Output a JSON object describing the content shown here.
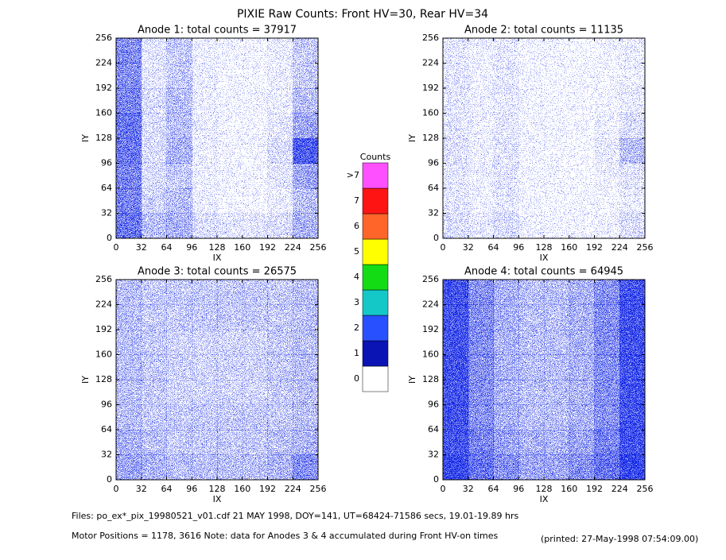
{
  "title": "PIXIE Raw Counts:  Front HV=30, Rear HV=34",
  "colorbar": {
    "title": "Counts",
    "labels": [
      "0",
      "1",
      "2",
      "3",
      "4",
      "5",
      "6",
      "7",
      ">7"
    ],
    "colors": [
      "#ffffff",
      "#0a14b4",
      "#2850ff",
      "#14c8c8",
      "#14dc14",
      "#ffff00",
      "#ff6428",
      "#ff1414",
      "#ff50ff"
    ]
  },
  "footer": {
    "line1": "Files: po_ex*_pix_19980521_v01.cdf    21 MAY 1998, DOY=141, UT=68424-71586 secs, 19.01-19.89 hrs",
    "line2": "Motor Positions = 1178, 3616    Note: data for Anodes 3 & 4 accumulated during Front HV-on times",
    "printed": "(printed: 27-May-1998 07:54:09.00)"
  },
  "chart_data": [
    {
      "type": "heatmap",
      "title": "Anode 1: total counts = 37917",
      "xlabel": "IX",
      "ylabel": "IY",
      "color": "#1428e6",
      "xlim": [
        0,
        256
      ],
      "ylim": [
        0,
        256
      ],
      "xticks": [
        0,
        32,
        64,
        96,
        128,
        160,
        192,
        224,
        256
      ],
      "yticks": [
        0,
        32,
        64,
        96,
        128,
        160,
        192,
        224,
        256
      ],
      "density": [
        [
          0.5,
          0.15,
          0.3,
          0.1,
          0.05,
          0.05,
          0.1,
          0.3
        ],
        [
          0.5,
          0.15,
          0.3,
          0.1,
          0.05,
          0.05,
          0.1,
          0.3
        ],
        [
          0.55,
          0.2,
          0.35,
          0.1,
          0.05,
          0.05,
          0.1,
          0.35
        ],
        [
          0.6,
          0.2,
          0.35,
          0.1,
          0.05,
          0.05,
          0.15,
          0.45
        ],
        [
          0.6,
          0.2,
          0.4,
          0.1,
          0.05,
          0.05,
          0.2,
          0.7
        ],
        [
          0.55,
          0.2,
          0.3,
          0.1,
          0.05,
          0.05,
          0.15,
          0.45
        ],
        [
          0.55,
          0.25,
          0.35,
          0.1,
          0.05,
          0.05,
          0.1,
          0.35
        ],
        [
          0.6,
          0.35,
          0.4,
          0.2,
          0.15,
          0.15,
          0.2,
          0.4
        ]
      ]
    },
    {
      "type": "heatmap",
      "title": "Anode 2: total counts = 11135",
      "xlabel": "IX",
      "ylabel": "IY",
      "color": "#1428e6",
      "xlim": [
        0,
        256
      ],
      "ylim": [
        0,
        256
      ],
      "xticks": [
        0,
        32,
        64,
        96,
        128,
        160,
        192,
        224,
        256
      ],
      "yticks": [
        0,
        32,
        64,
        96,
        128,
        160,
        192,
        224,
        256
      ],
      "density": [
        [
          0.15,
          0.08,
          0.12,
          0.05,
          0.03,
          0.03,
          0.05,
          0.1
        ],
        [
          0.15,
          0.08,
          0.15,
          0.05,
          0.03,
          0.03,
          0.05,
          0.1
        ],
        [
          0.15,
          0.08,
          0.12,
          0.05,
          0.03,
          0.03,
          0.05,
          0.12
        ],
        [
          0.15,
          0.08,
          0.15,
          0.05,
          0.03,
          0.03,
          0.08,
          0.2
        ],
        [
          0.18,
          0.08,
          0.15,
          0.05,
          0.03,
          0.03,
          0.12,
          0.35
        ],
        [
          0.15,
          0.08,
          0.15,
          0.05,
          0.03,
          0.03,
          0.08,
          0.15
        ],
        [
          0.15,
          0.08,
          0.15,
          0.05,
          0.03,
          0.03,
          0.05,
          0.12
        ],
        [
          0.2,
          0.12,
          0.2,
          0.08,
          0.05,
          0.05,
          0.08,
          0.2
        ]
      ]
    },
    {
      "type": "heatmap",
      "title": "Anode 3: total counts = 26575",
      "xlabel": "IX",
      "ylabel": "IY",
      "color": "#1428e6",
      "xlim": [
        0,
        256
      ],
      "ylim": [
        0,
        256
      ],
      "xticks": [
        0,
        32,
        64,
        96,
        128,
        160,
        192,
        224,
        256
      ],
      "yticks": [
        0,
        32,
        64,
        96,
        128,
        160,
        192,
        224,
        256
      ],
      "density": [
        [
          0.35,
          0.3,
          0.3,
          0.3,
          0.3,
          0.3,
          0.3,
          0.35
        ],
        [
          0.35,
          0.3,
          0.3,
          0.3,
          0.3,
          0.3,
          0.3,
          0.35
        ],
        [
          0.35,
          0.3,
          0.25,
          0.25,
          0.25,
          0.25,
          0.3,
          0.35
        ],
        [
          0.35,
          0.3,
          0.25,
          0.25,
          0.25,
          0.25,
          0.3,
          0.35
        ],
        [
          0.35,
          0.3,
          0.25,
          0.25,
          0.25,
          0.25,
          0.3,
          0.35
        ],
        [
          0.35,
          0.3,
          0.3,
          0.3,
          0.3,
          0.3,
          0.3,
          0.35
        ],
        [
          0.4,
          0.35,
          0.3,
          0.3,
          0.3,
          0.3,
          0.35,
          0.4
        ],
        [
          0.45,
          0.4,
          0.35,
          0.35,
          0.35,
          0.35,
          0.4,
          0.5
        ]
      ]
    },
    {
      "type": "heatmap",
      "title": "Anode 4: total counts = 64945",
      "xlabel": "IX",
      "ylabel": "IY",
      "color": "#1428e6",
      "xlim": [
        0,
        256
      ],
      "ylim": [
        0,
        256
      ],
      "xticks": [
        0,
        32,
        64,
        96,
        128,
        160,
        192,
        224,
        256
      ],
      "yticks": [
        0,
        32,
        64,
        96,
        128,
        160,
        192,
        224,
        256
      ],
      "density": [
        [
          0.75,
          0.5,
          0.4,
          0.35,
          0.35,
          0.4,
          0.5,
          0.75
        ],
        [
          0.75,
          0.5,
          0.4,
          0.35,
          0.35,
          0.4,
          0.5,
          0.75
        ],
        [
          0.75,
          0.5,
          0.4,
          0.35,
          0.35,
          0.4,
          0.5,
          0.75
        ],
        [
          0.75,
          0.5,
          0.4,
          0.35,
          0.35,
          0.4,
          0.5,
          0.75
        ],
        [
          0.75,
          0.5,
          0.4,
          0.35,
          0.35,
          0.4,
          0.5,
          0.75
        ],
        [
          0.75,
          0.5,
          0.4,
          0.35,
          0.35,
          0.4,
          0.5,
          0.75
        ],
        [
          0.75,
          0.55,
          0.45,
          0.4,
          0.4,
          0.45,
          0.55,
          0.75
        ],
        [
          0.8,
          0.6,
          0.5,
          0.45,
          0.45,
          0.5,
          0.6,
          0.8
        ]
      ]
    }
  ]
}
